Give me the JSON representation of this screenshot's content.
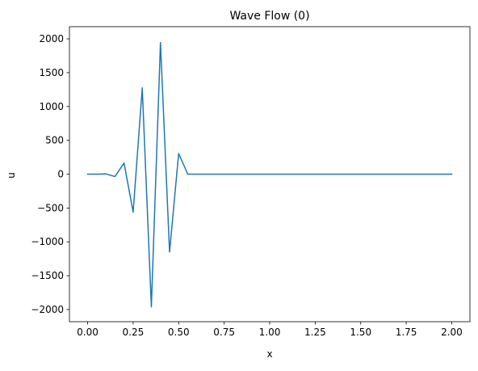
{
  "chart_data": {
    "type": "line",
    "title": "Wave Flow (0)",
    "xlabel": "x",
    "ylabel": "u",
    "xlim": [
      -0.1,
      2.1
    ],
    "ylim": [
      -2180,
      2180
    ],
    "xticks": [
      0.0,
      0.25,
      0.5,
      0.75,
      1.0,
      1.25,
      1.5,
      1.75,
      2.0
    ],
    "xtick_labels": [
      "0.00",
      "0.25",
      "0.50",
      "0.75",
      "1.00",
      "1.25",
      "1.50",
      "1.75",
      "2.00"
    ],
    "yticks": [
      -2000,
      -1500,
      -1000,
      -500,
      0,
      500,
      1000,
      1500,
      2000
    ],
    "ytick_labels": [
      "−2000",
      "−1500",
      "−1000",
      "−500",
      "0",
      "500",
      "1000",
      "1500",
      "2000"
    ],
    "grid": false,
    "series": [
      {
        "color": "#1f77b4",
        "x": [
          0.0,
          0.05,
          0.1,
          0.15,
          0.2,
          0.25,
          0.3,
          0.35,
          0.4,
          0.45,
          0.5,
          0.55,
          0.6,
          0.65,
          0.7,
          0.75,
          0.8,
          0.85,
          0.9,
          0.95,
          1.0,
          1.05,
          1.1,
          1.15,
          1.2,
          1.25,
          1.3,
          1.35,
          1.4,
          1.45,
          1.5,
          1.55,
          1.6,
          1.65,
          1.7,
          1.75,
          1.8,
          1.85,
          1.9,
          1.95,
          2.0
        ],
        "y": [
          0,
          0,
          5,
          -35,
          165,
          -560,
          1275,
          -1960,
          1945,
          -1150,
          305,
          0,
          0,
          0,
          0,
          0,
          0,
          0,
          0,
          0,
          0,
          0,
          0,
          0,
          0,
          0,
          0,
          0,
          0,
          0,
          0,
          0,
          0,
          0,
          0,
          0,
          0,
          0,
          0,
          0,
          0
        ]
      }
    ]
  }
}
